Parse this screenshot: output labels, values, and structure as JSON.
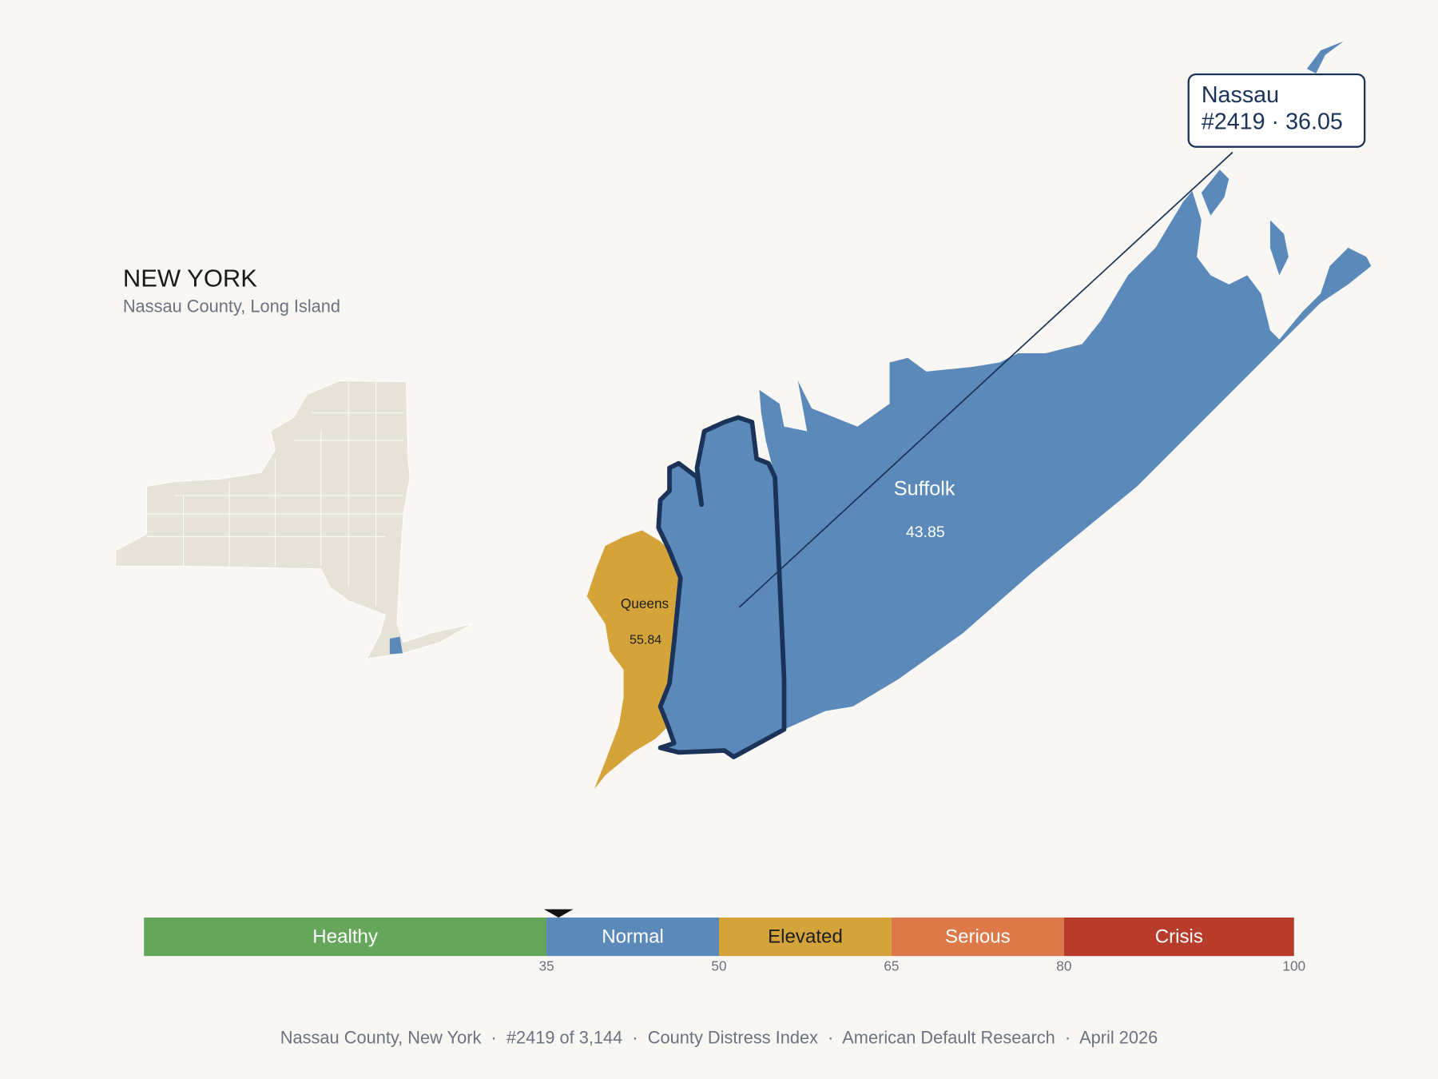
{
  "header": {
    "title": "NEW YORK",
    "subtitle": "Nassau County, Long Island"
  },
  "counties": [
    {
      "name": "Queens",
      "value": 55.84
    },
    {
      "name": "Suffolk",
      "value": 43.85
    }
  ],
  "tooltip": {
    "name": "Nassau",
    "detail": "#2419 · 36.05",
    "value": 36.05
  },
  "scale": {
    "range": [
      0,
      100
    ],
    "ticks": [
      35,
      50,
      65,
      80,
      100
    ],
    "bands": [
      {
        "label": "Healthy",
        "color": "#66a65a",
        "text_color": "#ffffff"
      },
      {
        "label": "Normal",
        "color": "#5b8aba",
        "text_color": "#ffffff"
      },
      {
        "label": "Elevated",
        "color": "#d4a43a",
        "text_color": "#1e1e1e"
      },
      {
        "label": "Serious",
        "color": "#dd7848",
        "text_color": "#ffffff"
      },
      {
        "label": "Crisis",
        "color": "#b83c2c",
        "text_color": "#ffffff"
      }
    ]
  },
  "footer": "Nassau County, New York  ·  #2419 of 3,144  ·  County Distress Index  ·  American Default Research  ·  April 2026"
}
